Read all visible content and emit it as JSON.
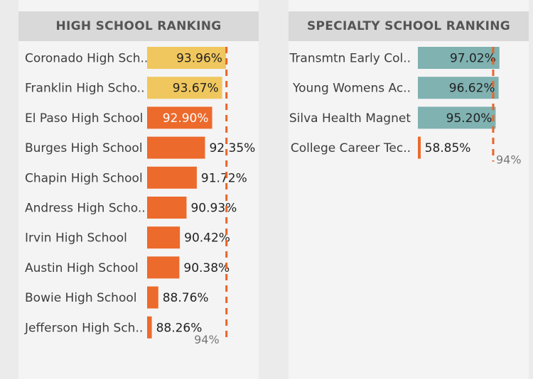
{
  "colors": {
    "yellow": "#f0c75e",
    "orange": "#ec6a2c",
    "teal": "#7fb2b1",
    "target_line": "#e8652a",
    "label_text": "#3d3d3d",
    "header_bg": "#d9d9d9"
  },
  "chart_data": [
    {
      "type": "bar",
      "orientation": "horizontal",
      "title": "HIGH SCHOOL RANKING",
      "categories": [
        "Coronado High Sch..",
        "Franklin High Scho..",
        "El Paso High School",
        "Burges High School",
        "Chapin High School",
        "Andress High Scho..",
        "Irvin High School",
        "Austin High School",
        "Bowie High School",
        "Jefferson High Sch.."
      ],
      "values": [
        93.96,
        93.67,
        92.9,
        92.35,
        91.72,
        90.93,
        90.42,
        90.38,
        88.76,
        88.26
      ],
      "value_labels": [
        "93.96%",
        "93.67%",
        "92.90%",
        "92.35%",
        "91.72%",
        "90.93%",
        "90.42%",
        "90.38%",
        "88.76%",
        "88.26%"
      ],
      "bar_colors": [
        "yellow",
        "yellow",
        "orange",
        "orange",
        "orange",
        "orange",
        "orange",
        "orange",
        "orange",
        "orange"
      ],
      "label_inside": [
        true,
        true,
        true,
        false,
        false,
        false,
        false,
        false,
        false,
        false
      ],
      "xlim": [
        87.9,
        94.4
      ],
      "target": 94,
      "target_label": "94%"
    },
    {
      "type": "bar",
      "orientation": "horizontal",
      "title": "SPECIALTY SCHOOL RANKING",
      "categories": [
        "Transmtn Early Col..",
        "Young Womens Ac..",
        "Silva Health Magnet",
        "College Career Tec.."
      ],
      "values": [
        97.02,
        96.62,
        95.2,
        58.85
      ],
      "value_labels": [
        "97.02%",
        "96.62%",
        "95.20%",
        "58.85%"
      ],
      "bar_colors": [
        "teal",
        "teal",
        "teal",
        "orange"
      ],
      "label_inside": [
        true,
        true,
        true,
        false
      ],
      "xlim": [
        57.6,
        97.1
      ],
      "target": 94,
      "target_label": "94%"
    }
  ]
}
